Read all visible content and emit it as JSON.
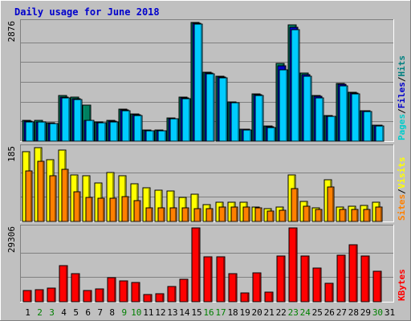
{
  "chart_data": {
    "type": "bar",
    "title": "Daily usage for June 2018",
    "days": [
      "1",
      "2",
      "3",
      "4",
      "5",
      "6",
      "7",
      "8",
      "9",
      "10",
      "11",
      "12",
      "13",
      "14",
      "15",
      "16",
      "17",
      "18",
      "19",
      "20",
      "21",
      "22",
      "23",
      "24",
      "25",
      "26",
      "27",
      "28",
      "29",
      "30",
      "31"
    ],
    "weekend_days": [
      "2",
      "3",
      "9",
      "10",
      "16",
      "17",
      "23",
      "24",
      "30"
    ],
    "panels": [
      {
        "id": "hits-files-pages",
        "ymax_label": "2876",
        "ymax": 2876,
        "legend": [
          {
            "text": "Pages",
            "color": "#00cccc"
          },
          {
            "text": "/",
            "color": "#000000"
          },
          {
            "text": "Files",
            "color": "#0000cc"
          },
          {
            "text": "/",
            "color": "#000000"
          },
          {
            "text": "Hits",
            "color": "#008080"
          }
        ],
        "series": [
          {
            "name": "Hits",
            "color": "#008060",
            "values": [
              500,
              500,
              440,
              1110,
              1070,
              870,
              470,
              500,
              780,
              670,
              270,
              270,
              570,
              1060,
              2876,
              1680,
              1570,
              960,
              300,
              1140,
              370,
              1880,
              2826,
              1650,
              1110,
              630,
              1390,
              1190,
              740,
              390,
              0
            ]
          },
          {
            "name": "Files",
            "color": "#0000cc",
            "values": [
              480,
              470,
              420,
              1060,
              1030,
              500,
              450,
              480,
              760,
              640,
              260,
              260,
              550,
              1040,
              2850,
              1650,
              1550,
              940,
              290,
              1120,
              350,
              1830,
              2760,
              1610,
              1080,
              610,
              1370,
              1160,
              730,
              380,
              0
            ]
          },
          {
            "name": "Pages",
            "color": "#00ccff",
            "values": [
              470,
              460,
              420,
              1040,
              1020,
              500,
              440,
              470,
              740,
              630,
              260,
              250,
              540,
              1030,
              2830,
              1640,
              1540,
              930,
              280,
              1100,
              340,
              1720,
              2700,
              1580,
              1050,
              600,
              1340,
              1140,
              710,
              370,
              0
            ]
          }
        ]
      },
      {
        "id": "visits-sites",
        "ymax_label": "185",
        "ymax": 185,
        "legend": [
          {
            "text": "Sites",
            "color": "#ff8000"
          },
          {
            "text": "/",
            "color": "#000000"
          },
          {
            "text": "Visits",
            "color": "#ffff00"
          }
        ],
        "series": [
          {
            "name": "Visits",
            "color": "#ffff00",
            "values": [
              175,
              185,
              155,
              178,
              116,
              114,
              96,
              123,
              115,
              94,
              85,
              78,
              76,
              60,
              68,
              43,
              48,
              48,
              48,
              37,
              33,
              36,
              117,
              50,
              35,
              104,
              36,
              38,
              40,
              48,
              0
            ]
          },
          {
            "name": "Sites",
            "color": "#ff8000",
            "values": [
              127,
              150,
              115,
              130,
              75,
              60,
              58,
              58,
              62,
              52,
              34,
              34,
              34,
              34,
              32,
              32,
              36,
              36,
              36,
              34,
              27,
              28,
              83,
              38,
              30,
              86,
              30,
              30,
              30,
              36,
              0
            ]
          }
        ]
      },
      {
        "id": "kbytes",
        "ymax_label": "29306",
        "ymax": 29306,
        "legend": [
          {
            "text": "KBytes",
            "color": "#ff0000"
          }
        ],
        "series": [
          {
            "name": "KBytes",
            "color": "#ff0000",
            "values": [
              4600,
              4700,
              5400,
              14300,
              11000,
              4400,
              5100,
              9500,
              8300,
              7700,
              2900,
              3300,
              6000,
              9000,
              29306,
              17800,
              17900,
              11000,
              3400,
              11600,
              3700,
              18200,
              29300,
              18200,
              13500,
              7400,
              18400,
              22500,
              18000,
              12100,
              0
            ]
          }
        ]
      }
    ]
  }
}
